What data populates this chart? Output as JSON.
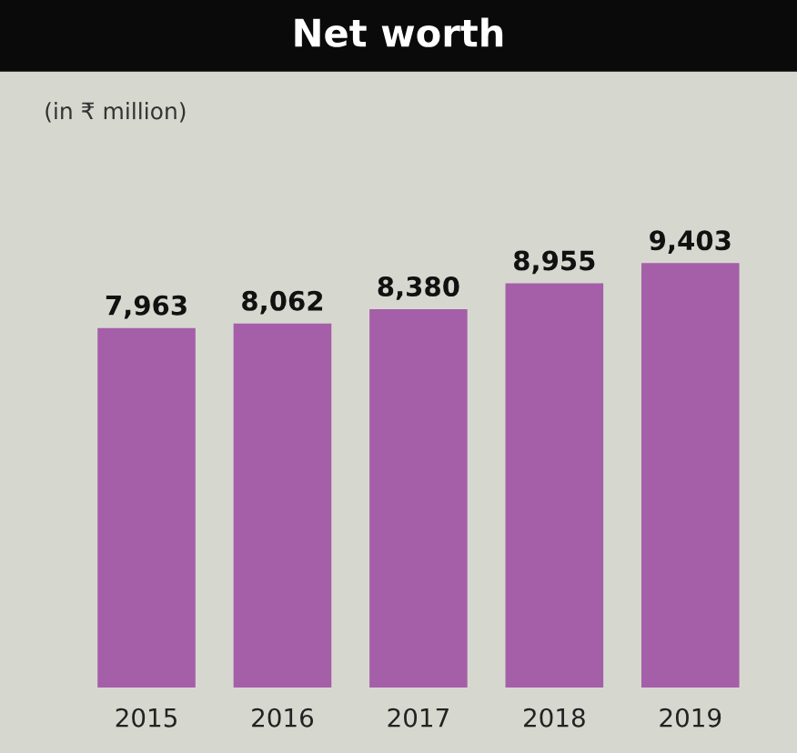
{
  "chart_data": {
    "type": "bar",
    "title": "Net worth",
    "subtitle": "(in ₹ million)",
    "categories": [
      "2015",
      "2016",
      "2017",
      "2018",
      "2019"
    ],
    "values": [
      7963,
      8062,
      8380,
      8955,
      9403
    ],
    "color": "#a55fa8",
    "value_labels": [
      "7,963",
      "8,062",
      "8,380",
      "8,955",
      "9,403"
    ],
    "grid": false,
    "legend": false
  }
}
